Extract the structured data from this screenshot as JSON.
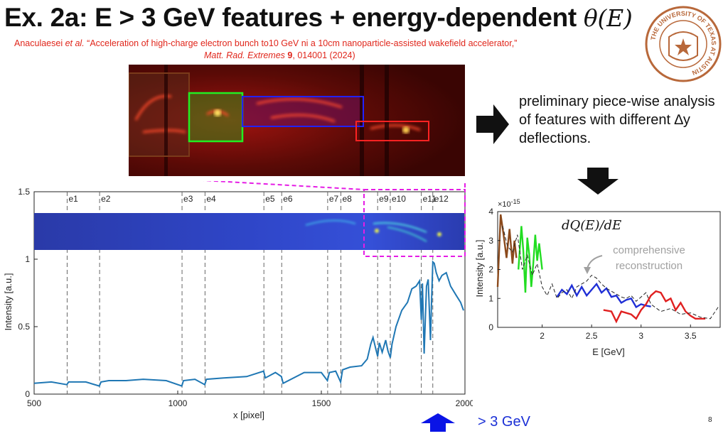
{
  "slide": {
    "title_text": "Ex. 2a:  E > 3 GeV features + energy-dependent ",
    "title_math": "θ(E)",
    "citation": {
      "authors": "Anaculaesei",
      "etal": " et al.",
      "title": " “Acceleration of high-charge electron bunch to10 GeV ni a 10cm nanoparticle-assisted wakefield accelerator,”",
      "journal": "Matt. Rad. Extremes",
      "volume": " 9",
      "pages": ", 014001 (2024)"
    },
    "seal_text": "THE UNIVERSITY OF TEXAS AT AUSTIN",
    "note": "preliminary piece-wise analysis of features with different ∆y deflections.",
    "gev_label": "> 3 GeV",
    "page_number": "8"
  },
  "colors": {
    "citation": "#e0261b",
    "signal": "#1f77b4",
    "arrow": "#0a14e6",
    "dashed_box": "#e51de5"
  },
  "chart_data": [
    {
      "type": "line",
      "title": "",
      "xlabel": "x [pixel]",
      "ylabel": "Intensity [a.u.]",
      "xlim": [
        500,
        2000
      ],
      "ylim": [
        0,
        1.5
      ],
      "xticks": [
        500,
        1000,
        1500,
        2000
      ],
      "yticks": [
        0,
        0.5,
        1,
        1.5
      ],
      "ytick_labels": [
        "0",
        "0.5",
        "1",
        "1.5"
      ],
      "markers": [
        {
          "label": "e1",
          "x": 615
        },
        {
          "label": "e2",
          "x": 728
        },
        {
          "label": "e3",
          "x": 1015
        },
        {
          "label": "e4",
          "x": 1095
        },
        {
          "label": "e5",
          "x": 1300
        },
        {
          "label": "e6",
          "x": 1362
        },
        {
          "label": "e7",
          "x": 1522
        },
        {
          "label": "e8",
          "x": 1568
        },
        {
          "label": "e9",
          "x": 1696
        },
        {
          "label": "e10",
          "x": 1740
        },
        {
          "label": "e11",
          "x": 1848
        },
        {
          "label": "e12",
          "x": 1888
        }
      ],
      "series": [
        {
          "name": "Intensity",
          "x": [
            500,
            560,
            614,
            620,
            680,
            727,
            733,
            760,
            820,
            880,
            960,
            1014,
            1020,
            1060,
            1094,
            1100,
            1160,
            1240,
            1299,
            1305,
            1340,
            1361,
            1367,
            1440,
            1500,
            1521,
            1528,
            1550,
            1567,
            1574,
            1600,
            1640,
            1660,
            1672,
            1680,
            1690,
            1696,
            1702,
            1712,
            1724,
            1732,
            1740,
            1746,
            1760,
            1780,
            1800,
            1815,
            1830,
            1842,
            1848,
            1852,
            1858,
            1866,
            1872,
            1880,
            1884,
            1888,
            1893,
            1900,
            1910,
            1920,
            1935,
            1950,
            1970,
            1985,
            1995
          ],
          "y": [
            0.08,
            0.09,
            0.07,
            0.09,
            0.09,
            0.06,
            0.09,
            0.1,
            0.1,
            0.11,
            0.1,
            0.06,
            0.1,
            0.11,
            0.07,
            0.11,
            0.12,
            0.13,
            0.17,
            0.12,
            0.16,
            0.13,
            0.08,
            0.16,
            0.16,
            0.1,
            0.16,
            0.17,
            0.09,
            0.18,
            0.2,
            0.21,
            0.26,
            0.37,
            0.42,
            0.33,
            0.28,
            0.38,
            0.31,
            0.4,
            0.32,
            0.27,
            0.37,
            0.5,
            0.62,
            0.68,
            0.78,
            0.8,
            0.84,
            0.55,
            0.82,
            0.3,
            0.8,
            0.85,
            0.4,
            0.7,
            0.98,
            0.97,
            0.9,
            0.84,
            0.88,
            0.9,
            0.8,
            0.73,
            0.68,
            0.62
          ]
        }
      ]
    },
    {
      "type": "line",
      "title": "dQ(E)/dE",
      "xlabel": "E [GeV]",
      "ylabel": "Intensity [a.u.]",
      "scale_label": "×10",
      "scale_exp": "-15",
      "xlim": [
        1.55,
        3.8
      ],
      "ylim": [
        0,
        4
      ],
      "xticks": [
        2,
        2.5,
        3,
        3.5
      ],
      "xtick_labels": [
        "2",
        "2.5",
        "3",
        "3.5"
      ],
      "yticks": [
        0,
        1,
        2,
        3,
        4
      ],
      "ytick_labels": [
        "0",
        "1",
        "2",
        "3",
        "4"
      ],
      "annotation": "comprehensive reconstruction",
      "series": [
        {
          "name": "e-brown",
          "color": "#8b4a1c",
          "x": [
            1.55,
            1.58,
            1.61,
            1.64,
            1.67,
            1.7,
            1.72,
            1.74
          ],
          "y": [
            1.4,
            3.9,
            3.2,
            2.4,
            3.4,
            2.2,
            3.0,
            2.4
          ]
        },
        {
          "name": "e-green",
          "color": "#22dd22",
          "x": [
            1.76,
            1.79,
            1.81,
            1.83,
            1.85,
            1.87,
            1.89,
            1.91,
            1.93,
            1.95,
            1.97,
            2.0
          ],
          "y": [
            2.0,
            3.5,
            2.6,
            1.2,
            3.1,
            2.5,
            1.4,
            2.2,
            3.2,
            2.3,
            2.9,
            2.0
          ]
        },
        {
          "name": "e-blue",
          "color": "#1f2fd6",
          "x": [
            2.15,
            2.2,
            2.25,
            2.3,
            2.35,
            2.4,
            2.45,
            2.5,
            2.55,
            2.6,
            2.65,
            2.7,
            2.75,
            2.8,
            2.85,
            2.9,
            2.95,
            3.0,
            3.05,
            3.1
          ],
          "y": [
            1.05,
            1.3,
            1.15,
            1.45,
            1.1,
            1.4,
            1.1,
            1.3,
            1.5,
            1.2,
            1.35,
            1.05,
            1.1,
            0.85,
            0.95,
            1.0,
            0.7,
            0.8,
            0.75,
            0.72
          ]
        },
        {
          "name": "e-red",
          "color": "#e02020",
          "x": [
            2.62,
            2.7,
            2.75,
            2.8,
            2.9,
            2.95,
            3.0,
            3.05,
            3.1,
            3.15,
            3.2,
            3.25,
            3.3,
            3.35,
            3.4,
            3.45,
            3.5,
            3.55,
            3.6,
            3.65
          ],
          "y": [
            0.6,
            0.55,
            0.2,
            0.55,
            0.45,
            0.3,
            0.6,
            0.8,
            1.1,
            1.25,
            1.2,
            0.9,
            1.0,
            0.6,
            0.85,
            0.55,
            0.4,
            0.3,
            0.3,
            0.3
          ]
        },
        {
          "name": "comprehensive",
          "color": "#222222",
          "dashed": true,
          "x": [
            1.6,
            1.65,
            1.7,
            1.75,
            1.8,
            1.85,
            1.9,
            1.95,
            2.0,
            2.05,
            2.1,
            2.15,
            2.2,
            2.25,
            2.3,
            2.35,
            2.4,
            2.45,
            2.5,
            2.55,
            2.6,
            2.65,
            2.7,
            2.75,
            2.8,
            2.85,
            2.9,
            2.95,
            3.0,
            3.05,
            3.1,
            3.2,
            3.3,
            3.4,
            3.5,
            3.6,
            3.7,
            3.78
          ],
          "y": [
            3.5,
            2.8,
            2.6,
            3.2,
            2.0,
            2.5,
            1.8,
            2.2,
            1.4,
            1.1,
            1.5,
            1.0,
            1.2,
            1.3,
            1.0,
            1.4,
            1.5,
            1.6,
            1.8,
            1.7,
            1.5,
            1.35,
            1.25,
            1.15,
            1.05,
            1.0,
            1.1,
            0.9,
            1.05,
            1.2,
            0.8,
            0.55,
            0.65,
            0.45,
            0.5,
            0.35,
            0.3,
            0.7
          ]
        }
      ]
    }
  ]
}
